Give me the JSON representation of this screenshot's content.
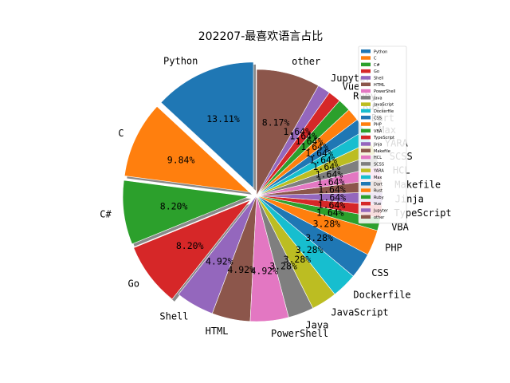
{
  "chart_data": {
    "type": "pie",
    "title": "202207-最喜欢语言占比",
    "legend_position": "upper-right",
    "start_angle_deg": 90,
    "direction": "counterclockwise",
    "slices": [
      {
        "label": "Python",
        "value": 13.11,
        "pct_text": "13.11%",
        "color": "#1f77b4",
        "explode": true
      },
      {
        "label": "C",
        "value": 9.84,
        "pct_text": "9.84%",
        "color": "#ff7f0e",
        "explode": true
      },
      {
        "label": "C#",
        "value": 8.2,
        "pct_text": "8.20%",
        "color": "#2ca02c",
        "explode": true
      },
      {
        "label": "Go",
        "value": 8.2,
        "pct_text": "8.20%",
        "color": "#d62728",
        "explode": true
      },
      {
        "label": "Shell",
        "value": 4.92,
        "pct_text": "4.92%",
        "color": "#9467bd",
        "explode": false
      },
      {
        "label": "HTML",
        "value": 4.92,
        "pct_text": "4.92%",
        "color": "#8c564b",
        "explode": false
      },
      {
        "label": "PowerShell",
        "value": 4.92,
        "pct_text": "4.92%",
        "color": "#e377c2",
        "explode": false
      },
      {
        "label": "Java",
        "value": 3.28,
        "pct_text": "3.28%",
        "color": "#7f7f7f",
        "explode": false
      },
      {
        "label": "JavaScript",
        "value": 3.28,
        "pct_text": "3.28%",
        "color": "#bcbd22",
        "explode": false
      },
      {
        "label": "Dockerfile",
        "value": 3.28,
        "pct_text": "3.28%",
        "color": "#17becf",
        "explode": false
      },
      {
        "label": "CSS",
        "value": 3.28,
        "pct_text": "3.28%",
        "color": "#1f77b4",
        "explode": false
      },
      {
        "label": "PHP",
        "value": 3.28,
        "pct_text": "3.28%",
        "color": "#ff7f0e",
        "explode": false
      },
      {
        "label": "VBA",
        "value": 1.64,
        "pct_text": "1.64%",
        "color": "#2ca02c",
        "explode": false
      },
      {
        "label": "TypeScript",
        "value": 1.64,
        "pct_text": "1.64%",
        "color": "#d62728",
        "explode": false
      },
      {
        "label": "Jinja",
        "value": 1.64,
        "pct_text": "1.64%",
        "color": "#9467bd",
        "explode": false
      },
      {
        "label": "Makefile",
        "value": 1.64,
        "pct_text": "1.64%",
        "color": "#8c564b",
        "explode": false
      },
      {
        "label": "HCL",
        "value": 1.64,
        "pct_text": "1.64%",
        "color": "#e377c2",
        "explode": false
      },
      {
        "label": "SCSS",
        "value": 1.64,
        "pct_text": "1.64%",
        "color": "#7f7f7f",
        "explode": false
      },
      {
        "label": "YARA",
        "value": 1.64,
        "pct_text": "1.64%",
        "color": "#bcbd22",
        "explode": false
      },
      {
        "label": "Max",
        "value": 1.64,
        "pct_text": "1.64%",
        "color": "#17becf",
        "explode": false
      },
      {
        "label": "Dart",
        "value": 1.64,
        "pct_text": "1.64%",
        "color": "#1f77b4",
        "explode": false
      },
      {
        "label": "Rust",
        "value": 1.64,
        "pct_text": "1.64%",
        "color": "#ff7f0e",
        "explode": false
      },
      {
        "label": "Ruby",
        "value": 1.64,
        "pct_text": "1.64%",
        "color": "#2ca02c",
        "explode": false
      },
      {
        "label": "Vue",
        "value": 1.64,
        "pct_text": "1.64%",
        "color": "#d62728",
        "explode": false
      },
      {
        "label": "Jupyter",
        "value": 1.64,
        "pct_text": "1.64%",
        "color": "#9467bd",
        "explode": false
      },
      {
        "label": "other",
        "value": 8.17,
        "pct_text": "8.17%",
        "color": "#8c564b",
        "explode": false
      }
    ]
  }
}
